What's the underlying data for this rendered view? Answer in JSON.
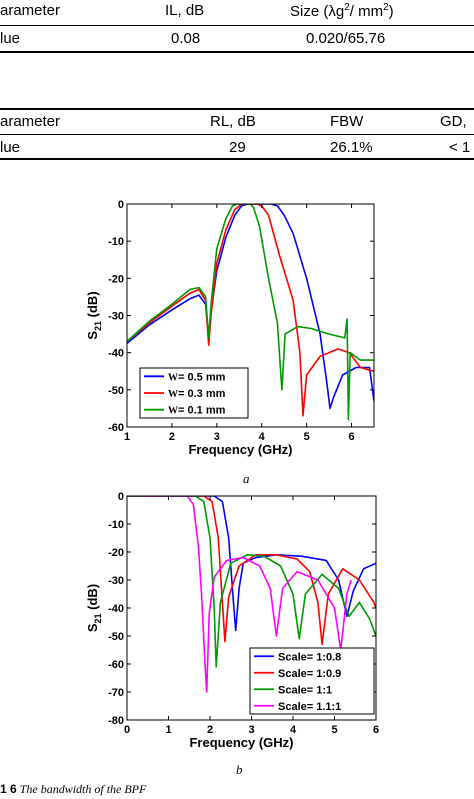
{
  "table1": {
    "headers": [
      "arameter",
      "IL, dB",
      "Size (λg",
      "2",
      "/ mm",
      "2",
      ")"
    ],
    "row": [
      "lue",
      "0.08",
      "0.020/65.76"
    ]
  },
  "table2": {
    "headers": [
      "arameter",
      "RL, dB",
      "FBW",
      "GD,"
    ],
    "row": [
      "lue",
      "29",
      "26.1%",
      "< 1"
    ]
  },
  "figure_a_label": "a",
  "figure_b_label": "b",
  "caption": {
    "number": "1 6",
    "text": "The bandwidth of the BPF"
  },
  "chart_data": [
    {
      "type": "line",
      "id": "a",
      "xlabel": "Frequency (GHz)",
      "ylabel_main": "S",
      "ylabel_sub": "21",
      "ylabel_unit": " (dB)",
      "xlim": [
        1,
        6.5
      ],
      "ylim": [
        -60,
        0
      ],
      "xticks": [
        1,
        2,
        3,
        4,
        5,
        6
      ],
      "yticks": [
        0,
        -10,
        -20,
        -30,
        -40,
        -50,
        -60
      ],
      "legend_position": "bottom-left",
      "series": [
        {
          "name": "W= 0.5 mm",
          "legend_prefix": "W",
          "legend_rest": "= 0.5 mm",
          "color": "#0000ff",
          "points": [
            [
              1,
              -37.5
            ],
            [
              1.5,
              -32.5
            ],
            [
              2,
              -28.5
            ],
            [
              2.4,
              -25.5
            ],
            [
              2.6,
              -24.5
            ],
            [
              2.75,
              -27
            ],
            [
              2.82,
              -36
            ],
            [
              2.86,
              -30
            ],
            [
              3.0,
              -18
            ],
            [
              3.2,
              -9
            ],
            [
              3.4,
              -3
            ],
            [
              3.55,
              -0.5
            ],
            [
              3.7,
              0
            ],
            [
              4.2,
              0
            ],
            [
              4.35,
              -0.5
            ],
            [
              4.5,
              -3
            ],
            [
              4.7,
              -8
            ],
            [
              5.0,
              -20
            ],
            [
              5.3,
              -35
            ],
            [
              5.45,
              -48
            ],
            [
              5.52,
              -55
            ],
            [
              5.6,
              -52
            ],
            [
              5.8,
              -46
            ],
            [
              6.1,
              -44
            ],
            [
              6.4,
              -44
            ],
            [
              6.5,
              -53
            ]
          ]
        },
        {
          "name": "W= 0.3 mm",
          "legend_prefix": "W",
          "legend_rest": "= 0.3 mm",
          "color": "#ff0000",
          "points": [
            [
              1,
              -37
            ],
            [
              1.5,
              -32
            ],
            [
              2,
              -27.5
            ],
            [
              2.4,
              -24
            ],
            [
              2.6,
              -23
            ],
            [
              2.75,
              -26
            ],
            [
              2.82,
              -38
            ],
            [
              2.87,
              -30
            ],
            [
              3.0,
              -16
            ],
            [
              3.2,
              -7
            ],
            [
              3.4,
              -1.5
            ],
            [
              3.55,
              0
            ],
            [
              3.9,
              0
            ],
            [
              4.0,
              -0.5
            ],
            [
              4.15,
              -3
            ],
            [
              4.4,
              -14
            ],
            [
              4.7,
              -26
            ],
            [
              4.85,
              -40
            ],
            [
              4.92,
              -57
            ],
            [
              5.0,
              -46
            ],
            [
              5.3,
              -41
            ],
            [
              5.7,
              -39
            ],
            [
              5.95,
              -40
            ],
            [
              6.2,
              -44
            ],
            [
              6.5,
              -45
            ]
          ]
        },
        {
          "name": "W= 0.1 mm",
          "legend_prefix": "W",
          "legend_rest": "= 0.1 mm",
          "color": "#009900",
          "points": [
            [
              1,
              -37
            ],
            [
              1.5,
              -31.5
            ],
            [
              2,
              -27
            ],
            [
              2.4,
              -23
            ],
            [
              2.6,
              -22.5
            ],
            [
              2.75,
              -25
            ],
            [
              2.82,
              -36
            ],
            [
              2.88,
              -26
            ],
            [
              3.0,
              -12
            ],
            [
              3.2,
              -4
            ],
            [
              3.35,
              -0.5
            ],
            [
              3.45,
              0
            ],
            [
              3.75,
              0
            ],
            [
              3.82,
              -1
            ],
            [
              3.95,
              -6
            ],
            [
              4.15,
              -20
            ],
            [
              4.35,
              -32
            ],
            [
              4.45,
              -50
            ],
            [
              4.52,
              -35
            ],
            [
              4.8,
              -33
            ],
            [
              5.1,
              -33.5
            ],
            [
              5.5,
              -35
            ],
            [
              5.85,
              -36
            ],
            [
              5.9,
              -31
            ],
            [
              5.93,
              -58
            ],
            [
              5.97,
              -40
            ],
            [
              6.2,
              -42
            ],
            [
              6.5,
              -42
            ]
          ]
        }
      ]
    },
    {
      "type": "line",
      "id": "b",
      "xlabel": "Frequency (GHz)",
      "ylabel_main": "S",
      "ylabel_sub": "21",
      "ylabel_unit": " (dB)",
      "xlim": [
        0,
        6
      ],
      "ylim": [
        -80,
        0
      ],
      "xticks": [
        0,
        1,
        2,
        3,
        4,
        5,
        6
      ],
      "yticks": [
        0,
        -10,
        -20,
        -30,
        -40,
        -50,
        -60,
        -70,
        -80
      ],
      "legend_position": "bottom-right",
      "series": [
        {
          "name": "Scale= 1:0.8",
          "color": "#0000ff",
          "points": [
            [
              0,
              0
            ],
            [
              2.1,
              0
            ],
            [
              2.3,
              -2
            ],
            [
              2.45,
              -15
            ],
            [
              2.55,
              -35
            ],
            [
              2.62,
              -48
            ],
            [
              2.7,
              -33
            ],
            [
              2.8,
              -24
            ],
            [
              3.1,
              -22
            ],
            [
              3.6,
              -21
            ],
            [
              4.2,
              -21.5
            ],
            [
              4.8,
              -23
            ],
            [
              5.1,
              -30
            ],
            [
              5.3,
              -43
            ],
            [
              5.45,
              -34
            ],
            [
              5.7,
              -26
            ],
            [
              6,
              -24
            ]
          ]
        },
        {
          "name": "Scale= 1:0.9",
          "color": "#ff0000",
          "points": [
            [
              0,
              0
            ],
            [
              1.85,
              0
            ],
            [
              2.05,
              -2
            ],
            [
              2.2,
              -15
            ],
            [
              2.3,
              -38
            ],
            [
              2.36,
              -52
            ],
            [
              2.45,
              -36
            ],
            [
              2.7,
              -25
            ],
            [
              3.1,
              -21
            ],
            [
              3.6,
              -21
            ],
            [
              4.1,
              -22.5
            ],
            [
              4.4,
              -27
            ],
            [
              4.6,
              -38
            ],
            [
              4.7,
              -53
            ],
            [
              4.85,
              -35
            ],
            [
              5.2,
              -26
            ],
            [
              5.6,
              -30
            ],
            [
              5.95,
              -38
            ],
            [
              6,
              -40
            ]
          ]
        },
        {
          "name": "Scale= 1:1",
          "color": "#009900",
          "points": [
            [
              0,
              0
            ],
            [
              1.65,
              0
            ],
            [
              1.85,
              -2
            ],
            [
              2.0,
              -15
            ],
            [
              2.1,
              -40
            ],
            [
              2.15,
              -61
            ],
            [
              2.25,
              -38
            ],
            [
              2.5,
              -24
            ],
            [
              2.9,
              -21
            ],
            [
              3.3,
              -21.5
            ],
            [
              3.7,
              -25
            ],
            [
              4.0,
              -35
            ],
            [
              4.15,
              -51
            ],
            [
              4.3,
              -35
            ],
            [
              4.7,
              -28
            ],
            [
              5.1,
              -33
            ],
            [
              5.35,
              -43
            ],
            [
              5.6,
              -38
            ],
            [
              5.85,
              -44
            ],
            [
              6,
              -50
            ]
          ]
        },
        {
          "name": "Scale= 1.1:1",
          "color": "#ff00ff",
          "points": [
            [
              0.3,
              0
            ],
            [
              1.45,
              0
            ],
            [
              1.6,
              -3
            ],
            [
              1.72,
              -18
            ],
            [
              1.8,
              -36
            ],
            [
              1.88,
              -60
            ],
            [
              1.92,
              -70
            ],
            [
              1.98,
              -42
            ],
            [
              2.1,
              -29
            ],
            [
              2.4,
              -23
            ],
            [
              2.8,
              -22
            ],
            [
              3.2,
              -25
            ],
            [
              3.45,
              -33
            ],
            [
              3.6,
              -50
            ],
            [
              3.75,
              -33
            ],
            [
              4.1,
              -27
            ],
            [
              4.6,
              -30
            ],
            [
              5.0,
              -40
            ],
            [
              5.15,
              -55
            ],
            [
              5.3,
              -35
            ],
            [
              5.4,
              -30
            ]
          ]
        }
      ]
    }
  ]
}
